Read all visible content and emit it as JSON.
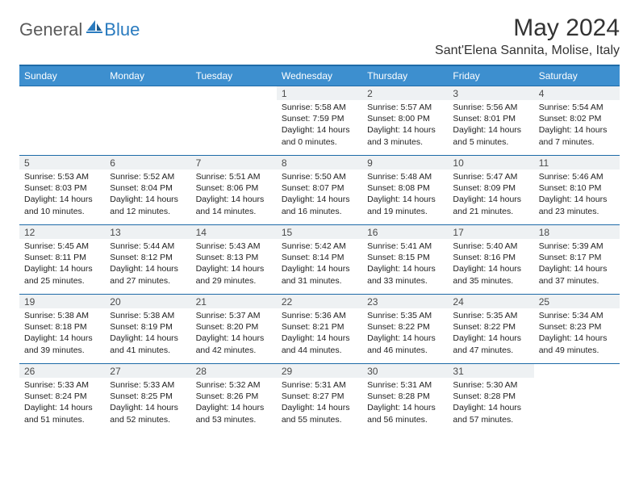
{
  "logo": {
    "general": "General",
    "blue": "Blue"
  },
  "title": "May 2024",
  "location": "Sant'Elena Sannita, Molise, Italy",
  "colors": {
    "header_bg": "#3d8fcf",
    "border": "#1e6ba8",
    "daynum_bg": "#eef1f3",
    "text": "#222222"
  },
  "weekdays": [
    "Sunday",
    "Monday",
    "Tuesday",
    "Wednesday",
    "Thursday",
    "Friday",
    "Saturday"
  ],
  "weeks": [
    [
      {
        "day": "",
        "sunrise": "",
        "sunset": "",
        "daylight": ""
      },
      {
        "day": "",
        "sunrise": "",
        "sunset": "",
        "daylight": ""
      },
      {
        "day": "",
        "sunrise": "",
        "sunset": "",
        "daylight": ""
      },
      {
        "day": "1",
        "sunrise": "Sunrise: 5:58 AM",
        "sunset": "Sunset: 7:59 PM",
        "daylight": "Daylight: 14 hours and 0 minutes."
      },
      {
        "day": "2",
        "sunrise": "Sunrise: 5:57 AM",
        "sunset": "Sunset: 8:00 PM",
        "daylight": "Daylight: 14 hours and 3 minutes."
      },
      {
        "day": "3",
        "sunrise": "Sunrise: 5:56 AM",
        "sunset": "Sunset: 8:01 PM",
        "daylight": "Daylight: 14 hours and 5 minutes."
      },
      {
        "day": "4",
        "sunrise": "Sunrise: 5:54 AM",
        "sunset": "Sunset: 8:02 PM",
        "daylight": "Daylight: 14 hours and 7 minutes."
      }
    ],
    [
      {
        "day": "5",
        "sunrise": "Sunrise: 5:53 AM",
        "sunset": "Sunset: 8:03 PM",
        "daylight": "Daylight: 14 hours and 10 minutes."
      },
      {
        "day": "6",
        "sunrise": "Sunrise: 5:52 AM",
        "sunset": "Sunset: 8:04 PM",
        "daylight": "Daylight: 14 hours and 12 minutes."
      },
      {
        "day": "7",
        "sunrise": "Sunrise: 5:51 AM",
        "sunset": "Sunset: 8:06 PM",
        "daylight": "Daylight: 14 hours and 14 minutes."
      },
      {
        "day": "8",
        "sunrise": "Sunrise: 5:50 AM",
        "sunset": "Sunset: 8:07 PM",
        "daylight": "Daylight: 14 hours and 16 minutes."
      },
      {
        "day": "9",
        "sunrise": "Sunrise: 5:48 AM",
        "sunset": "Sunset: 8:08 PM",
        "daylight": "Daylight: 14 hours and 19 minutes."
      },
      {
        "day": "10",
        "sunrise": "Sunrise: 5:47 AM",
        "sunset": "Sunset: 8:09 PM",
        "daylight": "Daylight: 14 hours and 21 minutes."
      },
      {
        "day": "11",
        "sunrise": "Sunrise: 5:46 AM",
        "sunset": "Sunset: 8:10 PM",
        "daylight": "Daylight: 14 hours and 23 minutes."
      }
    ],
    [
      {
        "day": "12",
        "sunrise": "Sunrise: 5:45 AM",
        "sunset": "Sunset: 8:11 PM",
        "daylight": "Daylight: 14 hours and 25 minutes."
      },
      {
        "day": "13",
        "sunrise": "Sunrise: 5:44 AM",
        "sunset": "Sunset: 8:12 PM",
        "daylight": "Daylight: 14 hours and 27 minutes."
      },
      {
        "day": "14",
        "sunrise": "Sunrise: 5:43 AM",
        "sunset": "Sunset: 8:13 PM",
        "daylight": "Daylight: 14 hours and 29 minutes."
      },
      {
        "day": "15",
        "sunrise": "Sunrise: 5:42 AM",
        "sunset": "Sunset: 8:14 PM",
        "daylight": "Daylight: 14 hours and 31 minutes."
      },
      {
        "day": "16",
        "sunrise": "Sunrise: 5:41 AM",
        "sunset": "Sunset: 8:15 PM",
        "daylight": "Daylight: 14 hours and 33 minutes."
      },
      {
        "day": "17",
        "sunrise": "Sunrise: 5:40 AM",
        "sunset": "Sunset: 8:16 PM",
        "daylight": "Daylight: 14 hours and 35 minutes."
      },
      {
        "day": "18",
        "sunrise": "Sunrise: 5:39 AM",
        "sunset": "Sunset: 8:17 PM",
        "daylight": "Daylight: 14 hours and 37 minutes."
      }
    ],
    [
      {
        "day": "19",
        "sunrise": "Sunrise: 5:38 AM",
        "sunset": "Sunset: 8:18 PM",
        "daylight": "Daylight: 14 hours and 39 minutes."
      },
      {
        "day": "20",
        "sunrise": "Sunrise: 5:38 AM",
        "sunset": "Sunset: 8:19 PM",
        "daylight": "Daylight: 14 hours and 41 minutes."
      },
      {
        "day": "21",
        "sunrise": "Sunrise: 5:37 AM",
        "sunset": "Sunset: 8:20 PM",
        "daylight": "Daylight: 14 hours and 42 minutes."
      },
      {
        "day": "22",
        "sunrise": "Sunrise: 5:36 AM",
        "sunset": "Sunset: 8:21 PM",
        "daylight": "Daylight: 14 hours and 44 minutes."
      },
      {
        "day": "23",
        "sunrise": "Sunrise: 5:35 AM",
        "sunset": "Sunset: 8:22 PM",
        "daylight": "Daylight: 14 hours and 46 minutes."
      },
      {
        "day": "24",
        "sunrise": "Sunrise: 5:35 AM",
        "sunset": "Sunset: 8:22 PM",
        "daylight": "Daylight: 14 hours and 47 minutes."
      },
      {
        "day": "25",
        "sunrise": "Sunrise: 5:34 AM",
        "sunset": "Sunset: 8:23 PM",
        "daylight": "Daylight: 14 hours and 49 minutes."
      }
    ],
    [
      {
        "day": "26",
        "sunrise": "Sunrise: 5:33 AM",
        "sunset": "Sunset: 8:24 PM",
        "daylight": "Daylight: 14 hours and 51 minutes."
      },
      {
        "day": "27",
        "sunrise": "Sunrise: 5:33 AM",
        "sunset": "Sunset: 8:25 PM",
        "daylight": "Daylight: 14 hours and 52 minutes."
      },
      {
        "day": "28",
        "sunrise": "Sunrise: 5:32 AM",
        "sunset": "Sunset: 8:26 PM",
        "daylight": "Daylight: 14 hours and 53 minutes."
      },
      {
        "day": "29",
        "sunrise": "Sunrise: 5:31 AM",
        "sunset": "Sunset: 8:27 PM",
        "daylight": "Daylight: 14 hours and 55 minutes."
      },
      {
        "day": "30",
        "sunrise": "Sunrise: 5:31 AM",
        "sunset": "Sunset: 8:28 PM",
        "daylight": "Daylight: 14 hours and 56 minutes."
      },
      {
        "day": "31",
        "sunrise": "Sunrise: 5:30 AM",
        "sunset": "Sunset: 8:28 PM",
        "daylight": "Daylight: 14 hours and 57 minutes."
      },
      {
        "day": "",
        "sunrise": "",
        "sunset": "",
        "daylight": ""
      }
    ]
  ]
}
